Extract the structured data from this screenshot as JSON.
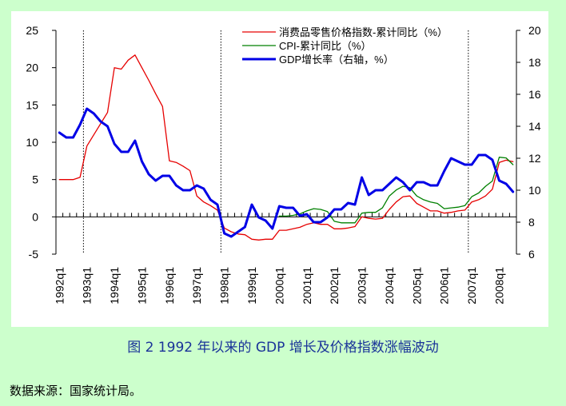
{
  "caption": "图 2 1992 年以来的 GDP 增长及价格指数涨幅波动",
  "source": "数据来源：国家统计局。",
  "colors": {
    "figure_bg": "#ccffcc",
    "plot_bg": "#ffffff",
    "retail": "#e60000",
    "cpi": "#008000",
    "gdp": "#0000e6",
    "caption": "#1a3399"
  },
  "chart_data": {
    "type": "line",
    "title": "",
    "xlabel": "",
    "ylabel": "",
    "y_left": {
      "lim": [
        -5,
        25
      ],
      "ticks": [
        "-5",
        "0",
        "5",
        "10",
        "15",
        "20",
        "25"
      ]
    },
    "y_right": {
      "lim": [
        6,
        20
      ],
      "ticks": [
        "6",
        "8",
        "10",
        "12",
        "14",
        "16",
        "18",
        "20"
      ]
    },
    "x_ticks": [
      "1992q1",
      "1993q1",
      "1994q1",
      "1995q1",
      "1996q1",
      "1997q1",
      "1998q1",
      "1999q1",
      "2000q1",
      "2001q1",
      "2002q1",
      "2003q1",
      "2004q1",
      "2005q1",
      "2006q1",
      "2007q1",
      "2008q1"
    ],
    "quarters_start": "1992q1",
    "quarters_end": "2008q3",
    "vertical_reference_lines": [
      "1993q1",
      "1998q1",
      "2007q1"
    ],
    "legend_position": "top-right",
    "series": [
      {
        "name": "消费品零售价格指数-累计同比（%）",
        "axis": "left",
        "color": "#e60000",
        "start": "1992q1",
        "values": [
          5.0,
          5.0,
          5.0,
          5.3,
          9.5,
          11.0,
          12.5,
          14.0,
          20.0,
          19.8,
          21.0,
          21.7,
          20.0,
          18.3,
          16.5,
          14.8,
          7.5,
          7.3,
          6.8,
          6.2,
          2.8,
          2.0,
          1.5,
          0.9,
          -1.5,
          -2.0,
          -2.3,
          -2.4,
          -3.0,
          -3.1,
          -3.0,
          -3.0,
          -1.8,
          -1.8,
          -1.6,
          -1.4,
          -1.0,
          -0.8,
          -1.0,
          -1.0,
          -1.6,
          -1.6,
          -1.5,
          -1.3,
          0.0,
          -0.2,
          -0.3,
          -0.2,
          1.0,
          2.0,
          2.7,
          2.8,
          1.8,
          1.3,
          0.8,
          0.8,
          0.5,
          0.6,
          0.8,
          0.9,
          2.0,
          2.3,
          2.8,
          3.7,
          7.3,
          7.6,
          7.4
        ]
      },
      {
        "name": "CPI-累计同比（%）",
        "axis": "left",
        "color": "#008000",
        "start": "2000q1",
        "values": [
          0.1,
          0.1,
          0.2,
          0.4,
          0.8,
          1.1,
          1.0,
          0.7,
          -0.6,
          -0.8,
          -0.8,
          -0.8,
          0.5,
          0.6,
          0.6,
          1.2,
          2.8,
          3.6,
          4.1,
          3.9,
          2.8,
          2.3,
          2.0,
          1.8,
          1.1,
          1.2,
          1.3,
          1.5,
          2.7,
          3.2,
          4.1,
          4.8,
          8.0,
          7.9,
          7.0
        ]
      },
      {
        "name": "GDP增长率（右轴，%）",
        "axis": "right",
        "color": "#0000e6",
        "start": "1992q1",
        "values": [
          13.6,
          13.3,
          13.3,
          14.1,
          15.1,
          14.8,
          14.3,
          14.0,
          12.9,
          12.4,
          12.4,
          13.1,
          11.8,
          11.0,
          10.6,
          10.9,
          10.9,
          10.3,
          10.0,
          10.0,
          10.3,
          10.1,
          9.4,
          9.1,
          7.3,
          7.1,
          7.4,
          7.7,
          9.1,
          8.3,
          8.1,
          7.6,
          9.0,
          8.9,
          8.9,
          8.4,
          8.5,
          8.0,
          8.0,
          8.3,
          8.8,
          8.8,
          9.2,
          9.1,
          10.8,
          9.7,
          10.0,
          10.0,
          10.4,
          10.8,
          10.5,
          10.0,
          10.5,
          10.5,
          10.3,
          10.3,
          11.2,
          12.0,
          11.8,
          11.6,
          11.6,
          12.2,
          12.2,
          11.9,
          10.6,
          10.4,
          9.9
        ]
      }
    ]
  }
}
